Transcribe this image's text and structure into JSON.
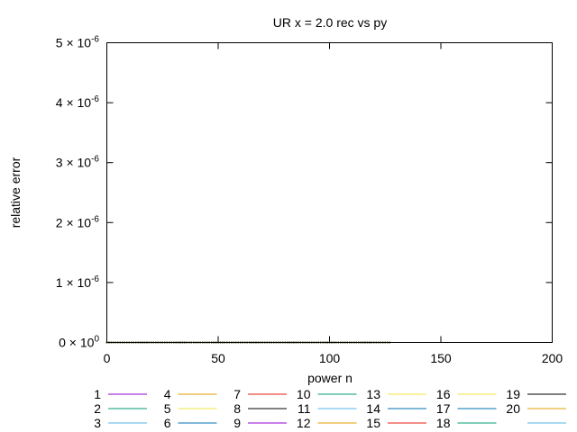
{
  "chart_data": {
    "type": "line",
    "title": "UR x = 2.0 rec vs py",
    "xlabel": "power n",
    "ylabel": "relative error",
    "xlim": [
      0,
      200
    ],
    "ylim": [
      0,
      5e-06
    ],
    "x_ticks": [
      {
        "value": 0,
        "label": "0"
      },
      {
        "value": 50,
        "label": "50"
      },
      {
        "value": 100,
        "label": "100"
      },
      {
        "value": 150,
        "label": "150"
      },
      {
        "value": 200,
        "label": "200"
      }
    ],
    "y_ticks": [
      {
        "value": 0,
        "base": "0 × 10",
        "exp": "0"
      },
      {
        "value": 1e-06,
        "base": "1 × 10",
        "exp": "-6"
      },
      {
        "value": 2e-06,
        "base": "2 × 10",
        "exp": "-6"
      },
      {
        "value": 3e-06,
        "base": "3 × 10",
        "exp": "-6"
      },
      {
        "value": 4e-06,
        "base": "4 × 10",
        "exp": "-6"
      },
      {
        "value": 5e-06,
        "base": "5 × 10",
        "exp": "-6"
      }
    ],
    "grid": false,
    "legend_position": "bottom",
    "series": [
      {
        "name": "1",
        "color": "#9400d3",
        "x_range": [
          0,
          127
        ],
        "values": "all 0"
      },
      {
        "name": "2",
        "color": "#009e73",
        "x_range": [
          0,
          127
        ],
        "values": "all 0"
      },
      {
        "name": "3",
        "color": "#56b4e9",
        "x_range": [
          0,
          127
        ],
        "values": "all 0"
      },
      {
        "name": "4",
        "color": "#e69f00",
        "x_range": [
          0,
          127
        ],
        "values": "all 0"
      },
      {
        "name": "5",
        "color": "#f0e442",
        "x_range": [
          0,
          127
        ],
        "values": "all 0"
      },
      {
        "name": "6",
        "color": "#0072b2",
        "x_range": [
          0,
          127
        ],
        "values": "all 0"
      },
      {
        "name": "7",
        "color": "#e51e10",
        "x_range": [
          0,
          127
        ],
        "values": "all 0"
      },
      {
        "name": "8",
        "color": "#000000",
        "x_range": [
          0,
          127
        ],
        "values": "all 0"
      },
      {
        "name": "9",
        "color": "#9400d3",
        "x_range": [
          0,
          127
        ],
        "values": "all 0"
      },
      {
        "name": "10",
        "color": "#009e73",
        "x_range": [
          0,
          127
        ],
        "values": "all 0"
      },
      {
        "name": "11",
        "color": "#56b4e9",
        "x_range": [
          0,
          127
        ],
        "values": "all 0"
      },
      {
        "name": "12",
        "color": "#e69f00",
        "x_range": [
          0,
          127
        ],
        "values": "all 0"
      },
      {
        "name": "13",
        "color": "#f0e442",
        "x_range": [
          0,
          127
        ],
        "values": "all 0"
      },
      {
        "name": "14",
        "color": "#0072b2",
        "x_range": [
          0,
          127
        ],
        "values": "all 0"
      },
      {
        "name": "15",
        "color": "#e51e10",
        "x_range": [
          0,
          127
        ],
        "values": "all 0"
      },
      {
        "name": "16",
        "color": "#f0e442",
        "x_range": [
          0,
          127
        ],
        "values": "all 0"
      },
      {
        "name": "17",
        "color": "#0072b2",
        "x_range": [
          0,
          127
        ],
        "values": "all 0"
      },
      {
        "name": "18",
        "color": "#009e73",
        "x_range": [
          0,
          127
        ],
        "values": "all 0"
      },
      {
        "name": "19",
        "color": "#000000",
        "x_range": [
          0,
          127
        ],
        "values": "all 0"
      },
      {
        "name": "20",
        "color": "#e69f00",
        "x_range": [
          0,
          127
        ],
        "values": "all 0"
      },
      {
        "name": "",
        "color": "#56b4e9",
        "x_range": [
          0,
          127
        ],
        "values": "all 0"
      }
    ]
  }
}
